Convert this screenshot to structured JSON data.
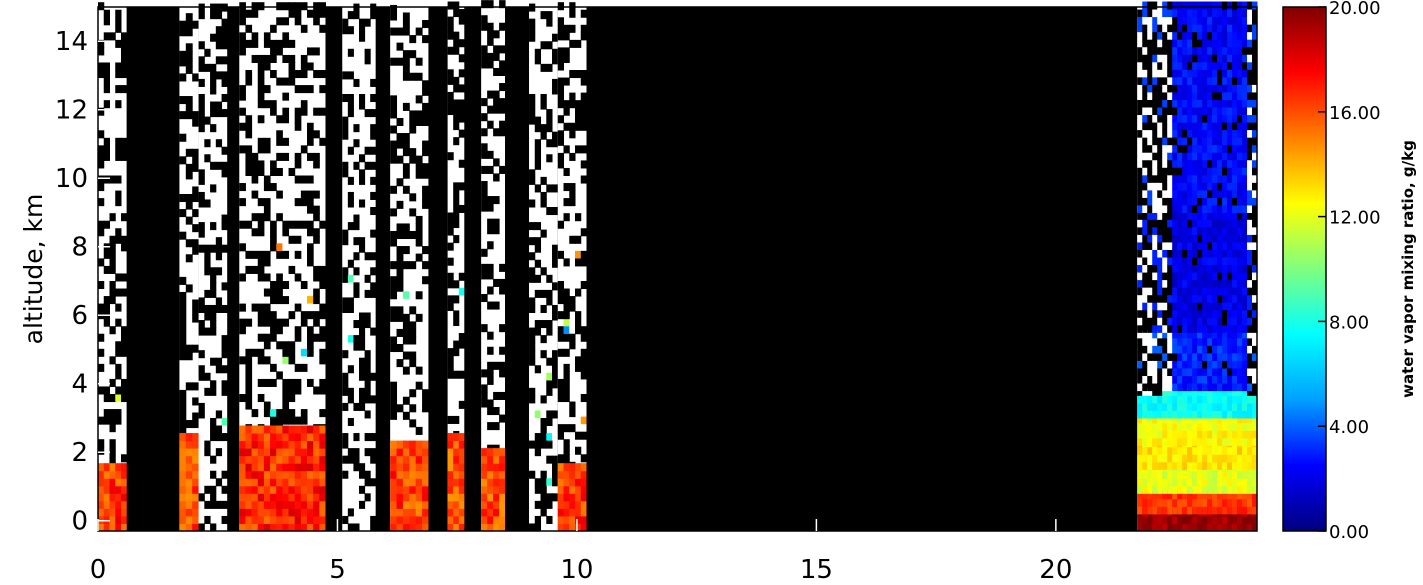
{
  "chart_data": {
    "type": "heatmap",
    "title": "",
    "xlabel": "",
    "ylabel": "altitude, km",
    "xlim": [
      0,
      24.2
    ],
    "ylim": [
      -0.3,
      15
    ],
    "x_ticks": [
      0,
      5,
      10,
      15,
      20
    ],
    "x_tick_labels": [
      "0",
      "5",
      "10",
      "15",
      "20"
    ],
    "y_ticks": [
      0,
      2,
      4,
      6,
      8,
      10,
      12,
      14
    ],
    "y_tick_labels": [
      "0",
      "2",
      "4",
      "6",
      "8",
      "10",
      "12",
      "14"
    ],
    "colorbar": {
      "label": "water vapor mixing ratio, g/kg",
      "range": [
        0,
        20
      ],
      "ticks": [
        0,
        4,
        8,
        12,
        16,
        20
      ],
      "tick_labels": [
        "0.00",
        "4.00",
        "8.00",
        "12.00",
        "16.00",
        "20.00"
      ],
      "colormap": [
        "#00007f",
        "#0000ff",
        "#00a0ff",
        "#00ffff",
        "#7fff7f",
        "#ffff00",
        "#ff8000",
        "#ff0000",
        "#800000"
      ]
    },
    "no_data_color": "#000000",
    "missing_color": "#ffffff",
    "bands": [
      {
        "x0": 0.0,
        "x1": 0.6,
        "kind": "data",
        "low_top": 1.5,
        "low_value": 16.5
      },
      {
        "x0": 0.6,
        "x1": 0.85,
        "kind": "nodata"
      },
      {
        "x0": 0.85,
        "x1": 1.7,
        "kind": "nodata"
      },
      {
        "x0": 1.7,
        "x1": 2.1,
        "kind": "data",
        "low_top": 2.5,
        "low_value": 16.0
      },
      {
        "x0": 2.1,
        "x1": 2.7,
        "kind": "sparse"
      },
      {
        "x0": 2.7,
        "x1": 2.95,
        "kind": "nodata"
      },
      {
        "x0": 2.95,
        "x1": 4.75,
        "kind": "data",
        "low_top": 2.6,
        "low_value": 16.8
      },
      {
        "x0": 4.75,
        "x1": 5.1,
        "kind": "nodata"
      },
      {
        "x0": 5.1,
        "x1": 5.8,
        "kind": "sparse"
      },
      {
        "x0": 5.8,
        "x1": 6.1,
        "kind": "nodata"
      },
      {
        "x0": 6.1,
        "x1": 6.9,
        "kind": "data",
        "low_top": 2.3,
        "low_value": 16.2
      },
      {
        "x0": 6.9,
        "x1": 7.3,
        "kind": "nodata"
      },
      {
        "x0": 7.3,
        "x1": 7.65,
        "kind": "data",
        "low_top": 2.4,
        "low_value": 16.0
      },
      {
        "x0": 7.65,
        "x1": 8.0,
        "kind": "nodata"
      },
      {
        "x0": 8.0,
        "x1": 8.5,
        "kind": "data",
        "low_top": 2.0,
        "low_value": 16.0
      },
      {
        "x0": 8.5,
        "x1": 9.0,
        "kind": "nodata"
      },
      {
        "x0": 9.0,
        "x1": 9.6,
        "kind": "sparse"
      },
      {
        "x0": 9.6,
        "x1": 10.2,
        "kind": "data",
        "low_top": 1.5,
        "low_value": 16.5
      },
      {
        "x0": 10.2,
        "x1": 21.7,
        "kind": "nodata"
      },
      {
        "x0": 21.7,
        "x1": 24.2,
        "kind": "profile"
      }
    ],
    "profile_levels": [
      {
        "z0": -0.3,
        "z1": 0.2,
        "value": 19.5
      },
      {
        "z0": 0.2,
        "z1": 0.8,
        "value": 16.5
      },
      {
        "z0": 0.8,
        "z1": 1.5,
        "value": 12.0
      },
      {
        "z0": 1.5,
        "z1": 2.2,
        "value": 13.0
      },
      {
        "z0": 2.2,
        "z1": 3.0,
        "value": 12.5
      },
      {
        "z0": 3.0,
        "z1": 3.8,
        "value": 7.5
      },
      {
        "z0": 3.8,
        "z1": 5.5,
        "value": 3.0
      },
      {
        "z0": 5.5,
        "z1": 9.0,
        "value": 2.0
      },
      {
        "z0": 9.0,
        "z1": 15.0,
        "value": 2.5
      }
    ]
  }
}
